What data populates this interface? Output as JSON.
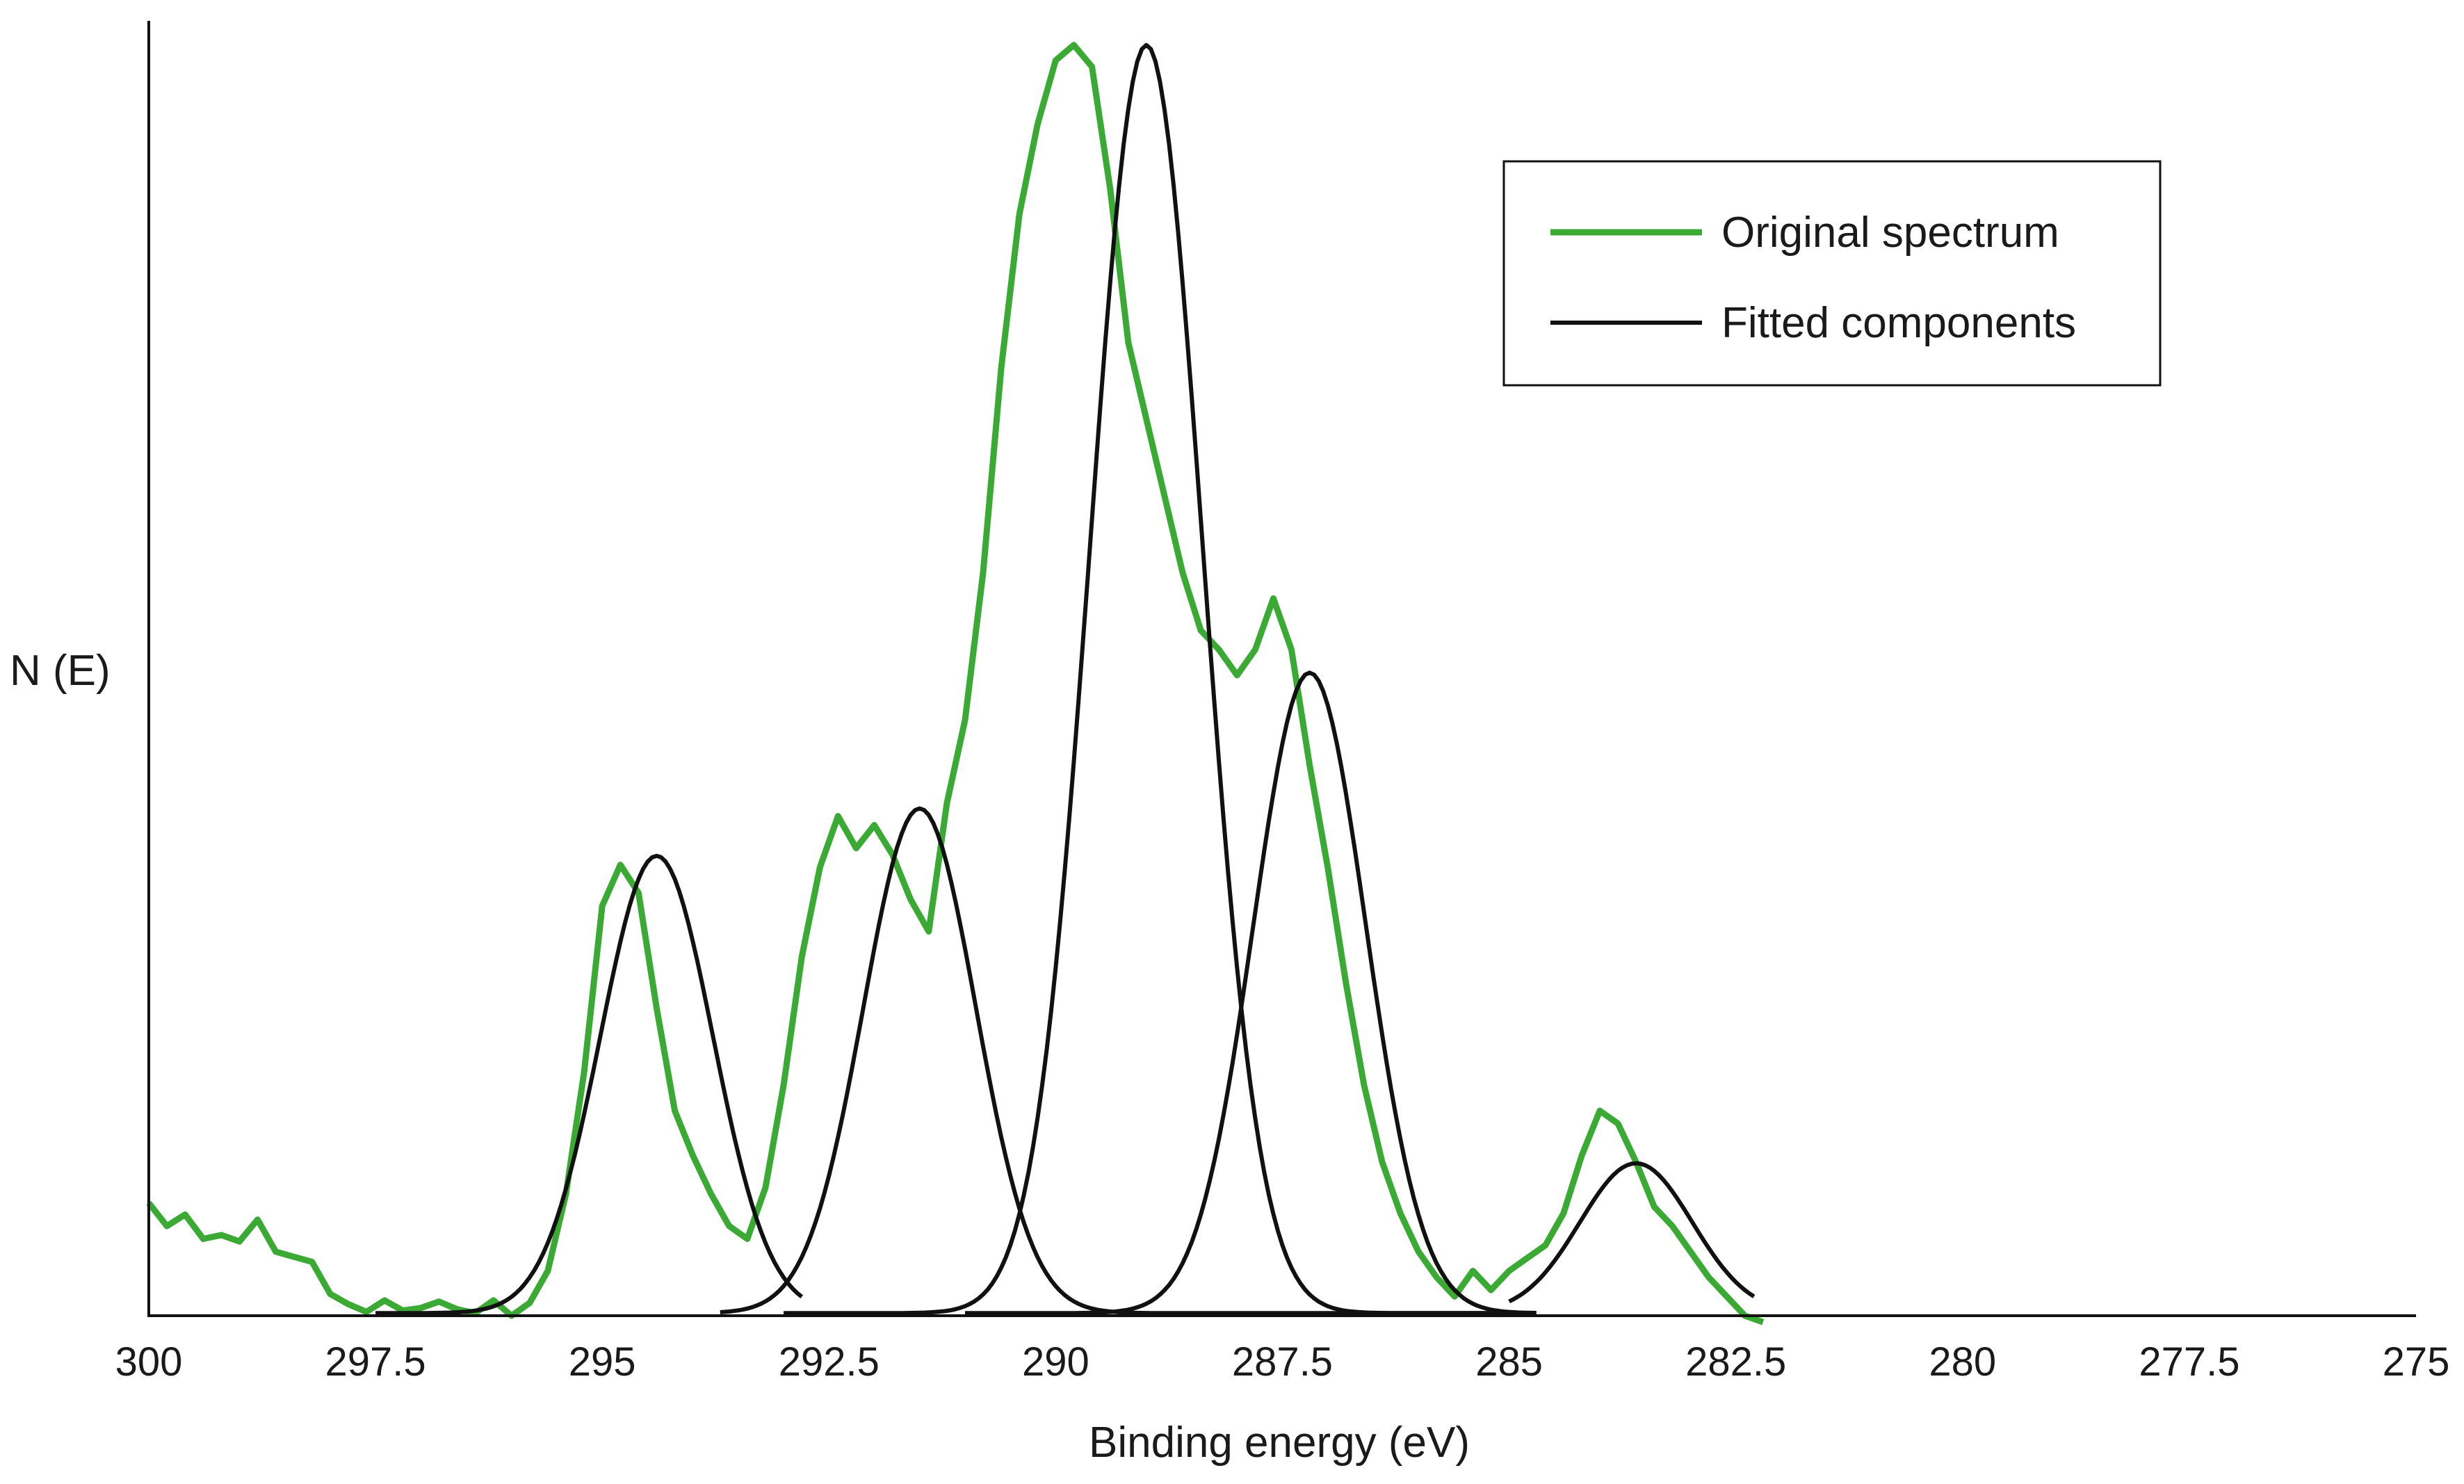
{
  "chart_data": {
    "type": "line",
    "title": "",
    "xlabel": "Binding energy (eV)",
    "ylabel": "N (E)",
    "xlim": [
      300,
      275
    ],
    "ylim": [
      0,
      100
    ],
    "x_reversed": true,
    "grid": false,
    "legend_position": "top-right",
    "x_ticks": [
      300,
      297.5,
      295,
      292.5,
      290,
      287.5,
      285,
      282.5,
      280,
      277.5,
      275
    ],
    "x_tick_labels": [
      "300",
      "297.5",
      "295",
      "292.5",
      "290",
      "287.5",
      "285",
      "282.5",
      "280",
      "277.5",
      "275"
    ],
    "legend": [
      {
        "label": "Original spectrum",
        "color": "#3aaa35"
      },
      {
        "label": "Fitted components",
        "color": "#111111"
      }
    ],
    "series": [
      {
        "name": "Original spectrum",
        "color": "#3aaa35",
        "x": [
          300.0,
          299.8,
          299.6,
          299.4,
          299.2,
          299.0,
          298.8,
          298.6,
          298.4,
          298.2,
          298.0,
          297.8,
          297.6,
          297.4,
          297.2,
          297.0,
          296.8,
          296.6,
          296.4,
          296.2,
          296.0,
          295.8,
          295.6,
          295.4,
          295.2,
          295.0,
          294.8,
          294.6,
          294.4,
          294.2,
          294.0,
          293.8,
          293.6,
          293.4,
          293.2,
          293.0,
          292.8,
          292.6,
          292.4,
          292.2,
          292.0,
          291.8,
          291.6,
          291.4,
          291.2,
          291.0,
          290.8,
          290.6,
          290.4,
          290.2,
          290.0,
          289.8,
          289.6,
          289.4,
          289.2,
          289.0,
          288.8,
          288.6,
          288.4,
          288.2,
          288.0,
          287.8,
          287.6,
          287.4,
          287.2,
          287.0,
          286.8,
          286.6,
          286.4,
          286.2,
          286.0,
          285.8,
          285.6,
          285.4,
          285.2,
          285.0,
          284.8,
          284.6,
          284.4,
          284.2,
          284.0,
          283.8,
          283.6,
          283.4,
          283.2,
          283.0,
          282.8,
          282.6,
          282.4,
          282.2
        ],
        "values": [
          8.8,
          7.0,
          7.9,
          6.0,
          6.3,
          5.8,
          7.5,
          5.0,
          4.6,
          4.2,
          1.7,
          0.9,
          0.3,
          1.2,
          0.4,
          0.6,
          1.1,
          0.5,
          0.2,
          1.2,
          0.0,
          1.0,
          3.5,
          9.5,
          19.0,
          32.0,
          35.2,
          33.0,
          24.0,
          16.0,
          12.5,
          9.5,
          7.0,
          6.0,
          10.0,
          18.0,
          28.0,
          35.0,
          39.0,
          36.5,
          38.3,
          36.0,
          32.5,
          30.0,
          40.0,
          46.5,
          58.0,
          74.0,
          86.0,
          93.0,
          98.0,
          99.2,
          97.5,
          88.0,
          76.0,
          70.0,
          64.0,
          58.0,
          53.5,
          52.0,
          50.0,
          52.0,
          56.0,
          52.0,
          43.0,
          35.0,
          26.0,
          18.0,
          12.0,
          8.0,
          5.0,
          3.0,
          1.5,
          3.5,
          2.0,
          3.5,
          4.5,
          5.5,
          8.0,
          12.5,
          16.0,
          15.0,
          12.0,
          8.5,
          7.0,
          5.0,
          3.0,
          1.5,
          0.0,
          -0.5
        ]
      },
      {
        "name": "Fitted components",
        "color": "#111111",
        "components": [
          {
            "center": 294.4,
            "amplitude": 35.7,
            "range": [
              297.5,
              292.8
            ]
          },
          {
            "center": 291.5,
            "amplitude": 39.4,
            "range": [
              293.7,
              285.0
            ]
          },
          {
            "center": 289.0,
            "amplitude": 99.0,
            "range": [
              293.0,
              284.7
            ]
          },
          {
            "center": 287.2,
            "amplitude": 50.0,
            "range": [
              291.0,
              284.7
            ]
          },
          {
            "center": 283.6,
            "amplitude": 11.7,
            "range": [
              285.0,
              282.3
            ]
          }
        ]
      }
    ]
  }
}
